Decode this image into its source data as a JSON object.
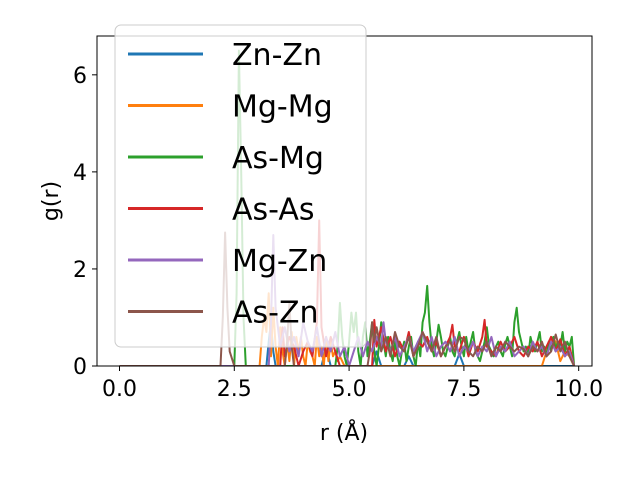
{
  "chart_data": {
    "type": "line",
    "xlabel": "r (Å)",
    "ylabel": "g(r)",
    "xlim": [
      -0.49,
      10.29
    ],
    "ylim": [
      0,
      6.8
    ],
    "xticks": [
      0.0,
      2.5,
      5.0,
      7.5,
      10.0
    ],
    "xtick_labels": [
      "0.0",
      "2.5",
      "5.0",
      "7.5",
      "10.0"
    ],
    "yticks": [
      0,
      2,
      4,
      6
    ],
    "ytick_labels": [
      "0",
      "2",
      "4",
      "6"
    ],
    "grid": false,
    "legend_position": "top-left",
    "series": [
      {
        "name": "Zn-Zn",
        "color": "#1f77b4",
        "x": [
          0.0,
          3.2,
          3.25,
          3.3,
          3.35,
          3.4,
          4.4,
          4.5,
          4.6,
          5.5,
          5.6,
          5.7,
          6.2,
          6.3,
          6.4,
          7.3,
          7.4,
          7.5,
          9.9
        ],
        "y": [
          0,
          0,
          0.5,
          0.9,
          0.3,
          0,
          0,
          0.4,
          0,
          0,
          0.3,
          0,
          0,
          0.2,
          0,
          0,
          0.25,
          0,
          0
        ]
      },
      {
        "name": "Mg-Mg",
        "color": "#ff7f0e",
        "x": [
          0.0,
          3.05,
          3.1,
          3.15,
          3.2,
          3.25,
          3.3,
          3.35,
          3.4,
          3.45,
          3.5,
          3.55,
          3.6,
          3.65,
          3.7,
          3.75,
          3.8,
          3.85,
          3.9,
          3.95,
          4.0,
          4.05,
          4.1,
          4.15,
          4.2,
          4.25,
          4.3,
          4.35,
          4.4,
          4.45,
          4.5,
          4.55,
          4.6,
          4.65,
          4.7,
          4.75,
          4.8,
          4.9,
          9.2,
          9.3,
          9.4,
          9.5,
          9.6,
          9.7,
          9.8,
          9.9
        ],
        "y": [
          0,
          0,
          0.6,
          1.0,
          0.7,
          1.5,
          0.2,
          1.2,
          0.4,
          0,
          0.8,
          0.3,
          0,
          0.5,
          0.1,
          0.7,
          0,
          0.6,
          0.3,
          0.6,
          0.2,
          0,
          0.5,
          0.3,
          0.2,
          0,
          0.6,
          0.2,
          0.4,
          0,
          0.6,
          0.1,
          0.5,
          0.2,
          0.3,
          0.1,
          0.2,
          0,
          0,
          0.3,
          0.6,
          0.5,
          0.1,
          0.3,
          0.2,
          0
        ]
      },
      {
        "name": "As-Mg",
        "color": "#2ca02c",
        "x": [
          0.0,
          2.5,
          2.55,
          2.6,
          2.65,
          2.7,
          2.75,
          4.7,
          4.75,
          4.8,
          4.85,
          4.9,
          4.95,
          5.0,
          5.05,
          5.1,
          5.15,
          5.2,
          5.25,
          5.3,
          5.35,
          5.4,
          5.45,
          5.5,
          5.55,
          5.6,
          5.65,
          5.7,
          5.75,
          5.8,
          5.85,
          5.9,
          5.95,
          6.0,
          6.05,
          6.1,
          6.15,
          6.2,
          6.25,
          6.3,
          6.35,
          6.4,
          6.45,
          6.5,
          6.55,
          6.6,
          6.65,
          6.7,
          6.75,
          6.8,
          6.85,
          6.9,
          6.95,
          7.0,
          7.05,
          7.1,
          7.15,
          7.2,
          7.25,
          7.3,
          7.35,
          7.4,
          7.45,
          7.5,
          7.55,
          7.6,
          7.65,
          7.7,
          7.75,
          7.8,
          7.85,
          7.9,
          7.95,
          8.0,
          8.05,
          8.1,
          8.15,
          8.2,
          8.25,
          8.3,
          8.35,
          8.4,
          8.45,
          8.5,
          8.55,
          8.6,
          8.65,
          8.7,
          8.75,
          8.8,
          8.85,
          8.9,
          8.95,
          9.0,
          9.05,
          9.1,
          9.15,
          9.2,
          9.25,
          9.3,
          9.35,
          9.4,
          9.45,
          9.5,
          9.55,
          9.6,
          9.65,
          9.7,
          9.75,
          9.8,
          9.85,
          9.9
        ],
        "y": [
          0,
          0,
          1.5,
          6.5,
          4.0,
          1.0,
          0,
          0,
          0.4,
          1.3,
          0.6,
          0.2,
          0,
          0.5,
          1.1,
          0.7,
          1.1,
          0.3,
          0,
          0.6,
          0.9,
          0.2,
          0.5,
          0.9,
          0.3,
          0,
          0.4,
          0.9,
          0.5,
          0.2,
          0.6,
          0.3,
          0.1,
          0.5,
          0.2,
          0,
          0.3,
          0.5,
          0.1,
          0.4,
          0.6,
          0.2,
          0,
          0.5,
          0.2,
          0.9,
          1.1,
          1.65,
          0.9,
          0.4,
          0.2,
          0.5,
          0.85,
          0.6,
          0.3,
          0.2,
          0.4,
          0.6,
          0.3,
          0.2,
          0.5,
          0.7,
          0.4,
          0.2,
          0.6,
          0.3,
          0.5,
          0.7,
          0.3,
          0.2,
          0.1,
          0.3,
          0.5,
          0.8,
          0.4,
          0.3,
          0.2,
          0.4,
          0.5,
          0.3,
          0.2,
          0.45,
          0.6,
          0.4,
          0.2,
          0.9,
          1.2,
          0.7,
          0.5,
          0.3,
          0.4,
          0.2,
          0.6,
          0.4,
          0.3,
          0.5,
          0.7,
          0.3,
          0.4,
          0.2,
          0.5,
          0.3,
          0.6,
          0.35,
          0.5,
          0.4,
          0.7,
          0.3,
          0.5,
          0.4,
          0.6,
          0
        ]
      },
      {
        "name": "As-As",
        "color": "#d62728",
        "x": [
          0.0,
          3.5,
          3.55,
          3.6,
          3.7,
          3.8,
          3.9,
          4.0,
          4.1,
          4.2,
          4.3,
          4.35,
          4.4,
          4.5,
          4.6,
          4.7,
          4.8,
          5.5,
          5.55,
          5.6,
          5.7,
          5.8,
          5.9,
          6.0,
          6.1,
          6.2,
          6.3,
          6.4,
          6.5,
          6.6,
          6.7,
          6.8,
          6.9,
          7.0,
          7.1,
          7.2,
          7.25,
          7.3,
          7.4,
          7.5,
          7.6,
          7.7,
          7.8,
          7.9,
          7.95,
          8.0,
          8.1,
          8.2,
          8.3,
          8.4,
          8.5,
          8.6,
          8.7,
          8.8,
          8.9,
          9.0,
          9.1,
          9.2,
          9.3,
          9.4,
          9.5,
          9.6,
          9.7,
          9.8,
          9.9
        ],
        "y": [
          0,
          0,
          0.8,
          0.2,
          0.6,
          0.4,
          0,
          0.3,
          0.5,
          0.2,
          0.9,
          3.0,
          0.8,
          0.2,
          0.6,
          0.3,
          0,
          0,
          0.95,
          0.4,
          0.8,
          0.3,
          0.6,
          0.2,
          0.5,
          0.3,
          0.7,
          0.2,
          0.5,
          0.4,
          0.6,
          0.3,
          0.5,
          0.2,
          0.4,
          0.6,
          0.85,
          0.4,
          0.3,
          0.6,
          0.2,
          0.5,
          0.3,
          0.6,
          0.95,
          0.4,
          0.3,
          0.2,
          0.5,
          0.3,
          0.4,
          0.6,
          0.3,
          0.2,
          0.4,
          0.3,
          0.5,
          0.2,
          0.4,
          0.6,
          0.3,
          0.55,
          0.2,
          0.4,
          0
        ]
      },
      {
        "name": "Mg-Zn",
        "color": "#9467bd",
        "x": [
          0.0,
          3.25,
          3.3,
          3.35,
          3.4,
          3.5,
          3.6,
          3.7,
          3.8,
          3.9,
          4.0,
          4.1,
          4.2,
          4.3,
          4.4,
          4.5,
          4.6,
          4.7,
          4.8,
          4.9,
          5.0,
          5.1,
          5.2,
          5.3,
          5.4,
          5.5,
          5.6,
          5.7,
          5.75,
          5.8,
          5.9,
          6.0,
          6.1,
          6.2,
          6.3,
          6.4,
          6.5,
          6.6,
          6.7,
          6.8,
          6.9,
          7.0,
          7.1,
          7.2,
          7.3,
          7.4,
          7.5,
          7.6,
          7.7,
          7.8,
          7.9,
          8.0,
          8.1,
          8.2,
          8.3,
          8.4,
          8.5,
          8.6,
          8.7,
          8.8,
          8.9,
          9.0,
          9.1,
          9.2,
          9.3,
          9.4,
          9.5,
          9.6,
          9.7,
          9.8,
          9.9
        ],
        "y": [
          0,
          0,
          0.9,
          2.7,
          1.2,
          0.4,
          0.8,
          0.3,
          0.6,
          0.2,
          0.9,
          0.5,
          0.3,
          0.8,
          0.2,
          0.6,
          0.3,
          0.7,
          0.2,
          0.4,
          0,
          0.3,
          0.6,
          0.2,
          0.5,
          0.3,
          0.6,
          0.4,
          0.9,
          0.5,
          0.3,
          0.6,
          0.2,
          0.4,
          0.6,
          0.3,
          0.5,
          0.7,
          0.3,
          0.6,
          0.2,
          0.4,
          0.5,
          0.3,
          0.6,
          0.2,
          0.4,
          0.3,
          0.5,
          0.2,
          0.4,
          0.3,
          0.6,
          0.2,
          0.4,
          0.3,
          0.5,
          0.2,
          0.3,
          0.4,
          0.2,
          0.5,
          0.3,
          0.4,
          0.2,
          0.5,
          0.3,
          0.4,
          0.2,
          0.3,
          0
        ]
      },
      {
        "name": "As-Zn",
        "color": "#8c564b",
        "x": [
          0.0,
          2.2,
          2.25,
          2.3,
          2.35,
          2.4,
          2.5,
          3.6,
          3.65,
          3.7,
          3.75,
          3.8,
          5.4,
          5.45,
          5.5,
          5.55,
          5.6,
          5.7,
          5.8,
          5.9,
          6.0,
          6.1,
          6.2,
          6.3,
          6.4,
          6.5,
          6.6,
          6.7,
          6.8,
          6.9,
          7.0,
          7.1,
          7.2,
          7.3,
          7.4,
          7.5,
          7.6,
          7.7,
          7.8,
          7.9,
          8.0,
          8.1,
          8.2,
          8.3,
          8.4,
          8.5,
          8.6,
          8.7,
          8.8,
          8.9,
          9.0,
          9.1,
          9.2,
          9.3,
          9.4,
          9.5,
          9.6,
          9.7,
          9.8,
          9.9
        ],
        "y": [
          0,
          0,
          1.0,
          2.75,
          1.2,
          0.3,
          0,
          0,
          0.5,
          1.3,
          0.4,
          0,
          0,
          0.3,
          0.9,
          0.5,
          0.8,
          0.3,
          0.6,
          0.2,
          0.7,
          0.4,
          0.3,
          0.6,
          0.2,
          0.4,
          0.7,
          0.5,
          0.3,
          0.6,
          0.2,
          0.4,
          0.5,
          0.3,
          0.6,
          0.55,
          0.3,
          0.2,
          0.4,
          0.3,
          0.5,
          0.2,
          0.4,
          0.3,
          0.5,
          0.4,
          0.3,
          0.4,
          0.35,
          0.2,
          0.4,
          0.3,
          0.5,
          0.2,
          0.3,
          0.65,
          0.3,
          0.5,
          0.2,
          0
        ]
      }
    ]
  }
}
